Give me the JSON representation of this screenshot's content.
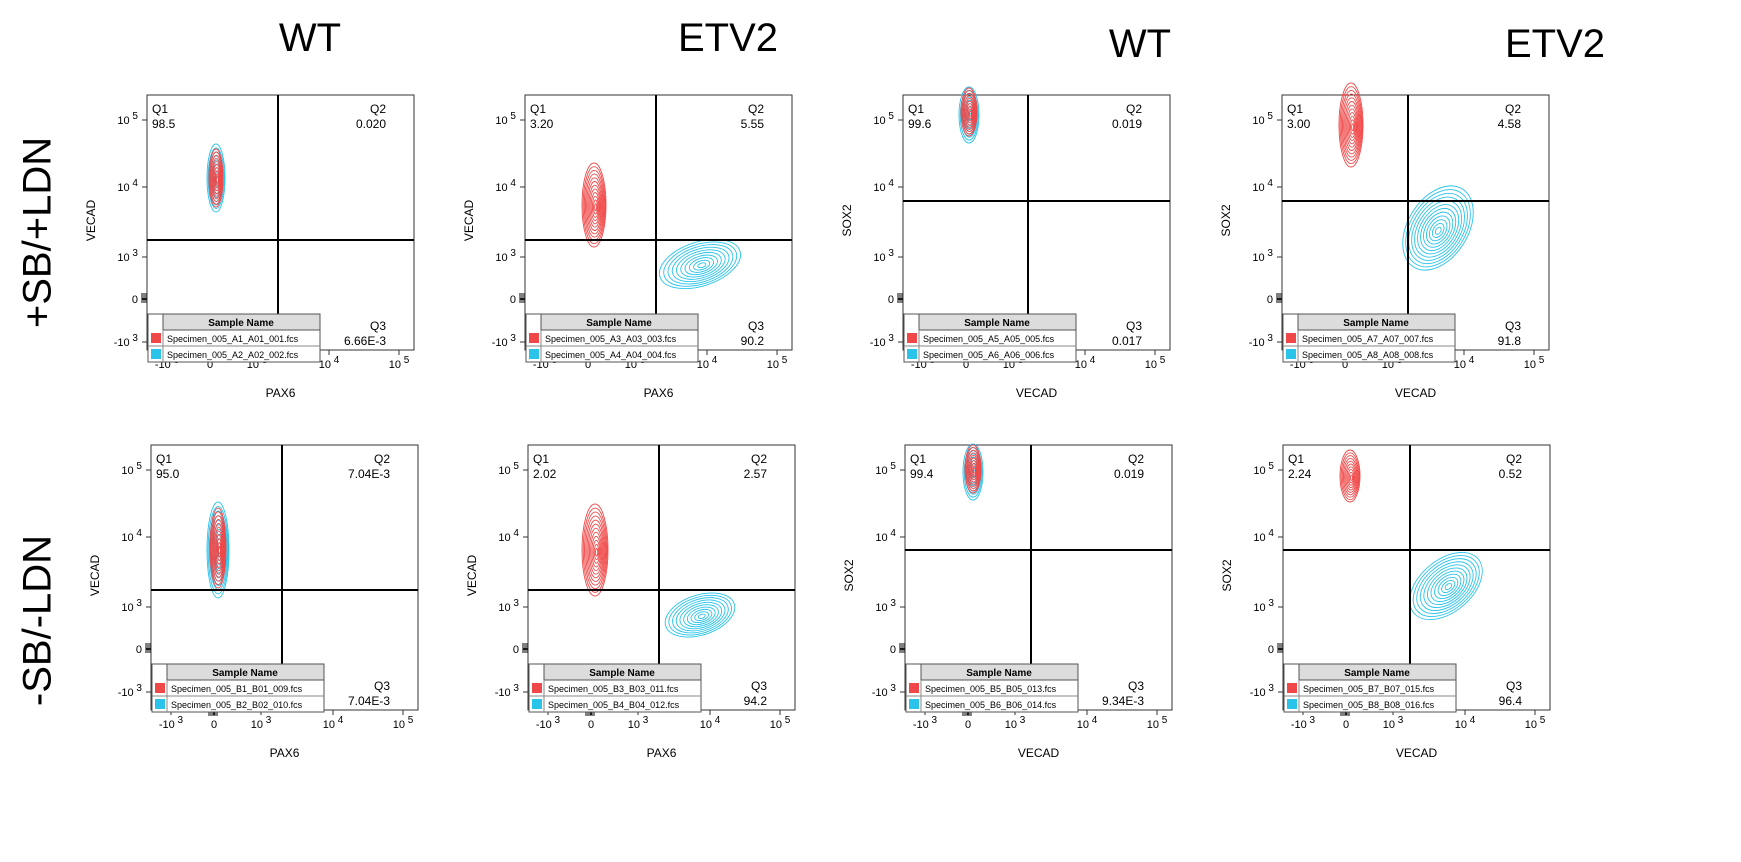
{
  "column_titles": [
    "WT",
    "ETV2",
    "WT",
    "ETV2"
  ],
  "row_titles": [
    "+SB/+LDN",
    "-SB/-LDN"
  ],
  "legend_header": "Sample Name",
  "colors": {
    "red": "#f04848",
    "cyan": "#2ac3ea",
    "line": "#000000",
    "legend_header_bg": "#dcdcdc"
  },
  "chart_data": [
    {
      "type": "contour",
      "xlabel": "PAX6",
      "ylabel": "VECAD",
      "x_ticks": [
        "-10 3",
        "0",
        "10 3",
        "10 4",
        "10 5"
      ],
      "y_ticks": [
        "10 5",
        "10 4",
        "10 3",
        "0",
        "-10 3"
      ],
      "quadrants": {
        "Q1": "98.5",
        "Q2": "0.020",
        "Q3": "6.66E-3"
      },
      "legend": [
        "Specimen_005_A1_A01_001.fcs",
        "Specimen_005_A2_A02_002.fcs"
      ]
    },
    {
      "type": "contour",
      "xlabel": "PAX6",
      "ylabel": "VECAD",
      "x_ticks": [
        "-10 3",
        "0",
        "10 3",
        "10 4",
        "10 5"
      ],
      "y_ticks": [
        "10 5",
        "10 4",
        "10 3",
        "0",
        "-10 3"
      ],
      "quadrants": {
        "Q1": "3.20",
        "Q2": "5.55",
        "Q3": "90.2"
      },
      "legend": [
        "Specimen_005_A3_A03_003.fcs",
        "Specimen_005_A4_A04_004.fcs"
      ]
    },
    {
      "type": "contour",
      "xlabel": "VECAD",
      "ylabel": "SOX2",
      "x_ticks": [
        "-10 3",
        "0",
        "10 3",
        "10 4",
        "10 5"
      ],
      "y_ticks": [
        "10 5",
        "10 4",
        "10 3",
        "0",
        "-10 3"
      ],
      "quadrants": {
        "Q1": "99.6",
        "Q2": "0.019",
        "Q3": "0.017"
      },
      "legend": [
        "Specimen_005_A5_A05_005.fcs",
        "Specimen_005_A6_A06_006.fcs"
      ]
    },
    {
      "type": "contour",
      "xlabel": "VECAD",
      "ylabel": "SOX2",
      "x_ticks": [
        "-10 3",
        "0",
        "10 3",
        "10 4",
        "10 5"
      ],
      "y_ticks": [
        "10 5",
        "10 4",
        "10 3",
        "0",
        "-10 3"
      ],
      "quadrants": {
        "Q1": "3.00",
        "Q2": "4.58",
        "Q3": "91.8"
      },
      "legend": [
        "Specimen_005_A7_A07_007.fcs",
        "Specimen_005_A8_A08_008.fcs"
      ]
    },
    {
      "type": "contour",
      "xlabel": "PAX6",
      "ylabel": "VECAD",
      "x_ticks": [
        "-10 3",
        "0",
        "10 3",
        "10 4",
        "10 5"
      ],
      "y_ticks": [
        "10 5",
        "10 4",
        "10 3",
        "0",
        "-10 3"
      ],
      "quadrants": {
        "Q1": "95.0",
        "Q2": "7.04E-3",
        "Q3": "7.04E-3"
      },
      "legend": [
        "Specimen_005_B1_B01_009.fcs",
        "Specimen_005_B2_B02_010.fcs"
      ]
    },
    {
      "type": "contour",
      "xlabel": "PAX6",
      "ylabel": "VECAD",
      "x_ticks": [
        "-10 3",
        "0",
        "10 3",
        "10 4",
        "10 5"
      ],
      "y_ticks": [
        "10 5",
        "10 4",
        "10 3",
        "0",
        "-10 3"
      ],
      "quadrants": {
        "Q1": "2.02",
        "Q2": "2.57",
        "Q3": "94.2"
      },
      "legend": [
        "Specimen_005_B3_B03_011.fcs",
        "Specimen_005_B4_B04_012.fcs"
      ]
    },
    {
      "type": "contour",
      "xlabel": "VECAD",
      "ylabel": "SOX2",
      "x_ticks": [
        "-10 3",
        "0",
        "10 3",
        "10 4",
        "10 5"
      ],
      "y_ticks": [
        "10 5",
        "10 4",
        "10 3",
        "0",
        "-10 3"
      ],
      "quadrants": {
        "Q1": "99.4",
        "Q2": "0.019",
        "Q3": "9.34E-3"
      },
      "legend": [
        "Specimen_005_B5_B05_013.fcs",
        "Specimen_005_B6_B06_014.fcs"
      ]
    },
    {
      "type": "contour",
      "xlabel": "VECAD",
      "ylabel": "SOX2",
      "x_ticks": [
        "-10 3",
        "0",
        "10 3",
        "10 4",
        "10 5"
      ],
      "y_ticks": [
        "10 5",
        "10 4",
        "10 3",
        "0",
        "-10 3"
      ],
      "quadrants": {
        "Q1": "2.24",
        "Q2": "0.52",
        "Q3": "96.4"
      },
      "legend": [
        "Specimen_005_B7_B07_015.fcs",
        "Specimen_005_B8_B08_016.fcs"
      ]
    }
  ]
}
